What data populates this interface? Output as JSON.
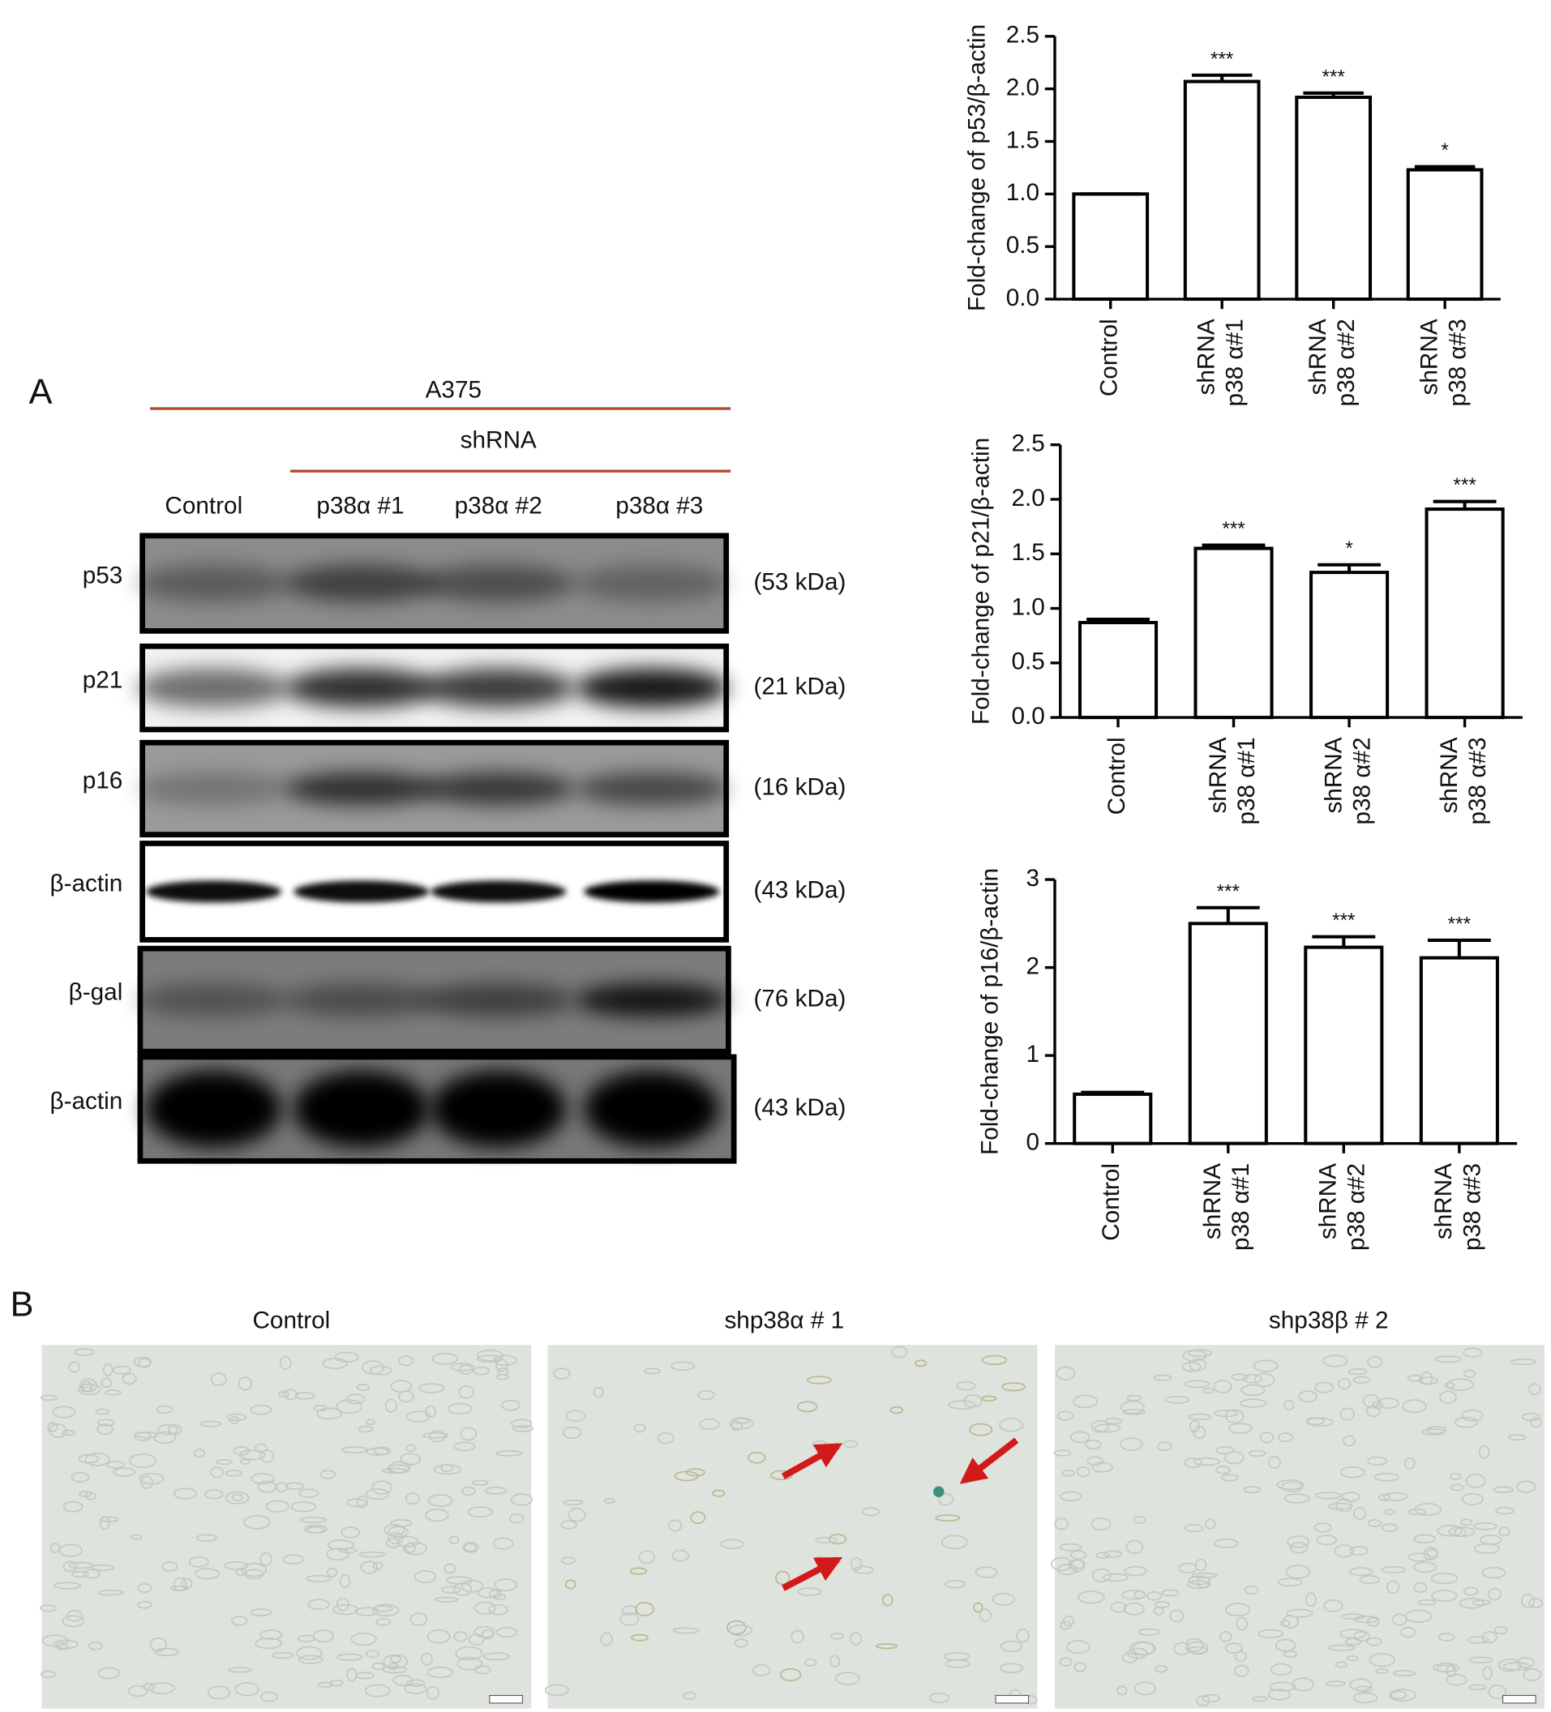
{
  "chart_data": [
    {
      "type": "bar",
      "ylabel": "Fold-change of  p53/β-actin",
      "categories": [
        [
          "Control"
        ],
        [
          "shRNA",
          "p38 α#1"
        ],
        [
          "shRNA",
          "p38 α#2"
        ],
        [
          "shRNA",
          "p38 α#3"
        ]
      ],
      "values": [
        1.0,
        2.07,
        1.92,
        1.23
      ],
      "errors": [
        0,
        0.06,
        0.04,
        0.03
      ],
      "annotations": [
        null,
        "***",
        "***",
        "*"
      ],
      "color": "#ffffff",
      "edgecolor": "#000000",
      "ylim": [
        0,
        2.5
      ],
      "yticks": [
        {
          "value": 0,
          "label": "0.0"
        },
        0.5,
        {
          "value": 1,
          "label": "1.0"
        },
        1.5,
        {
          "value": 2,
          "label": "2.0"
        },
        2.5
      ]
    },
    {
      "type": "bar",
      "ylabel": "Fold-change of  p21/β-actin",
      "categories": [
        [
          "Control"
        ],
        [
          "shRNA",
          "p38 α#1"
        ],
        [
          "shRNA",
          "p38 α#2"
        ],
        [
          "shRNA",
          "p38 α#3"
        ]
      ],
      "values": [
        0.87,
        1.55,
        1.33,
        1.91
      ],
      "errors": [
        0.03,
        0.03,
        0.07,
        0.07
      ],
      "annotations": [
        null,
        "***",
        "*",
        "***"
      ],
      "color": "#ffffff",
      "edgecolor": "#000000",
      "ylim": [
        0,
        2.5
      ],
      "yticks": [
        {
          "value": 0,
          "label": "0.0"
        },
        0.5,
        {
          "value": 1,
          "label": "1.0"
        },
        1.5,
        {
          "value": 2,
          "label": "2.0"
        },
        2.5
      ]
    },
    {
      "type": "bar",
      "ylabel": "Fold-change of  p16/β-actin",
      "categories": [
        [
          "Control"
        ],
        [
          "shRNA",
          "p38 α#1"
        ],
        [
          "shRNA",
          "p38 α#2"
        ],
        [
          "shRNA",
          "p38 α#3"
        ]
      ],
      "values": [
        0.56,
        2.5,
        2.23,
        2.11
      ],
      "errors": [
        0.02,
        0.18,
        0.12,
        0.2
      ],
      "annotations": [
        null,
        "***",
        "***",
        "***"
      ],
      "color": "#ffffff",
      "edgecolor": "#000000",
      "ylim": [
        0,
        3
      ],
      "yticks": [
        0,
        1,
        2,
        3
      ]
    }
  ],
  "figure": {
    "panel_a": "A",
    "panel_b": "B",
    "cell_line": "A375",
    "treatment": "shRNA",
    "lanes": [
      "Control",
      "p38α #1",
      "p38α #2",
      "p38α #3"
    ],
    "blots": [
      {
        "protein": "p53",
        "size": "(53 kDa)"
      },
      {
        "protein": "p21",
        "size": "(21 kDa)"
      },
      {
        "protein": "p16",
        "size": "(16 kDa)"
      },
      {
        "protein": "β-actin",
        "size": "(43 kDa)"
      },
      {
        "protein": "β-gal",
        "size": "(76 kDa)"
      },
      {
        "protein": "β-actin",
        "size": "(43 kDa)"
      }
    ],
    "micrographs": [
      "Control",
      "shp38α # 1",
      "shp38β # 2"
    ]
  }
}
